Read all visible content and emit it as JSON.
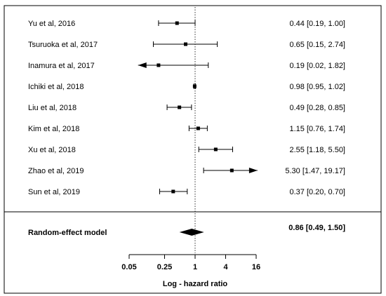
{
  "chart_data": {
    "type": "forest",
    "x_scale": "log",
    "xlabel": "Log - hazard ratio",
    "xlim": [
      0.05,
      16
    ],
    "x_ticks": [
      {
        "value": 0.05,
        "label": "0.05"
      },
      {
        "value": 0.25,
        "label": "0.25"
      },
      {
        "value": 1,
        "label": "1"
      },
      {
        "value": 4,
        "label": "4"
      },
      {
        "value": 16,
        "label": "16"
      }
    ],
    "reference_line": 1,
    "studies": [
      {
        "label": "Yu et al, 2016",
        "hr": 0.44,
        "lower": 0.19,
        "upper": 1.0,
        "ci_text": "0.44 [0.19,  1.00]"
      },
      {
        "label": "Tsuruoka et al, 2017",
        "hr": 0.65,
        "lower": 0.15,
        "upper": 2.74,
        "ci_text": "0.65 [0.15,  2.74]"
      },
      {
        "label": "Inamura et al, 2017",
        "hr": 0.19,
        "lower": 0.02,
        "upper": 1.82,
        "ci_text": "0.19 [0.02,  1.82]",
        "clipped_lower": true
      },
      {
        "label": "Ichiki et al, 2018",
        "hr": 0.98,
        "lower": 0.95,
        "upper": 1.02,
        "ci_text": "0.98 [0.95,  1.02]"
      },
      {
        "label": "Liu et al, 2018",
        "hr": 0.49,
        "lower": 0.28,
        "upper": 0.85,
        "ci_text": "0.49 [0.28,  0.85]"
      },
      {
        "label": "Kim et al, 2018",
        "hr": 1.15,
        "lower": 0.76,
        "upper": 1.74,
        "ci_text": "1.15 [0.76,  1.74]"
      },
      {
        "label": "Xu et al, 2018",
        "hr": 2.55,
        "lower": 1.18,
        "upper": 5.5,
        "ci_text": "2.55 [1.18,  5.50]"
      },
      {
        "label": "Zhao et al, 2019",
        "hr": 5.3,
        "lower": 1.47,
        "upper": 19.17,
        "ci_text": "5.30 [1.47, 19.17]",
        "clipped_upper": true
      },
      {
        "label": "Sun et al, 2019",
        "hr": 0.37,
        "lower": 0.2,
        "upper": 0.7,
        "ci_text": "0.37 [0.20,  0.70]"
      }
    ],
    "summary": {
      "label": "Random-effect model",
      "hr": 0.86,
      "lower": 0.49,
      "upper": 1.5,
      "ci_text": "0.86 [0.49,  1.50]"
    }
  }
}
